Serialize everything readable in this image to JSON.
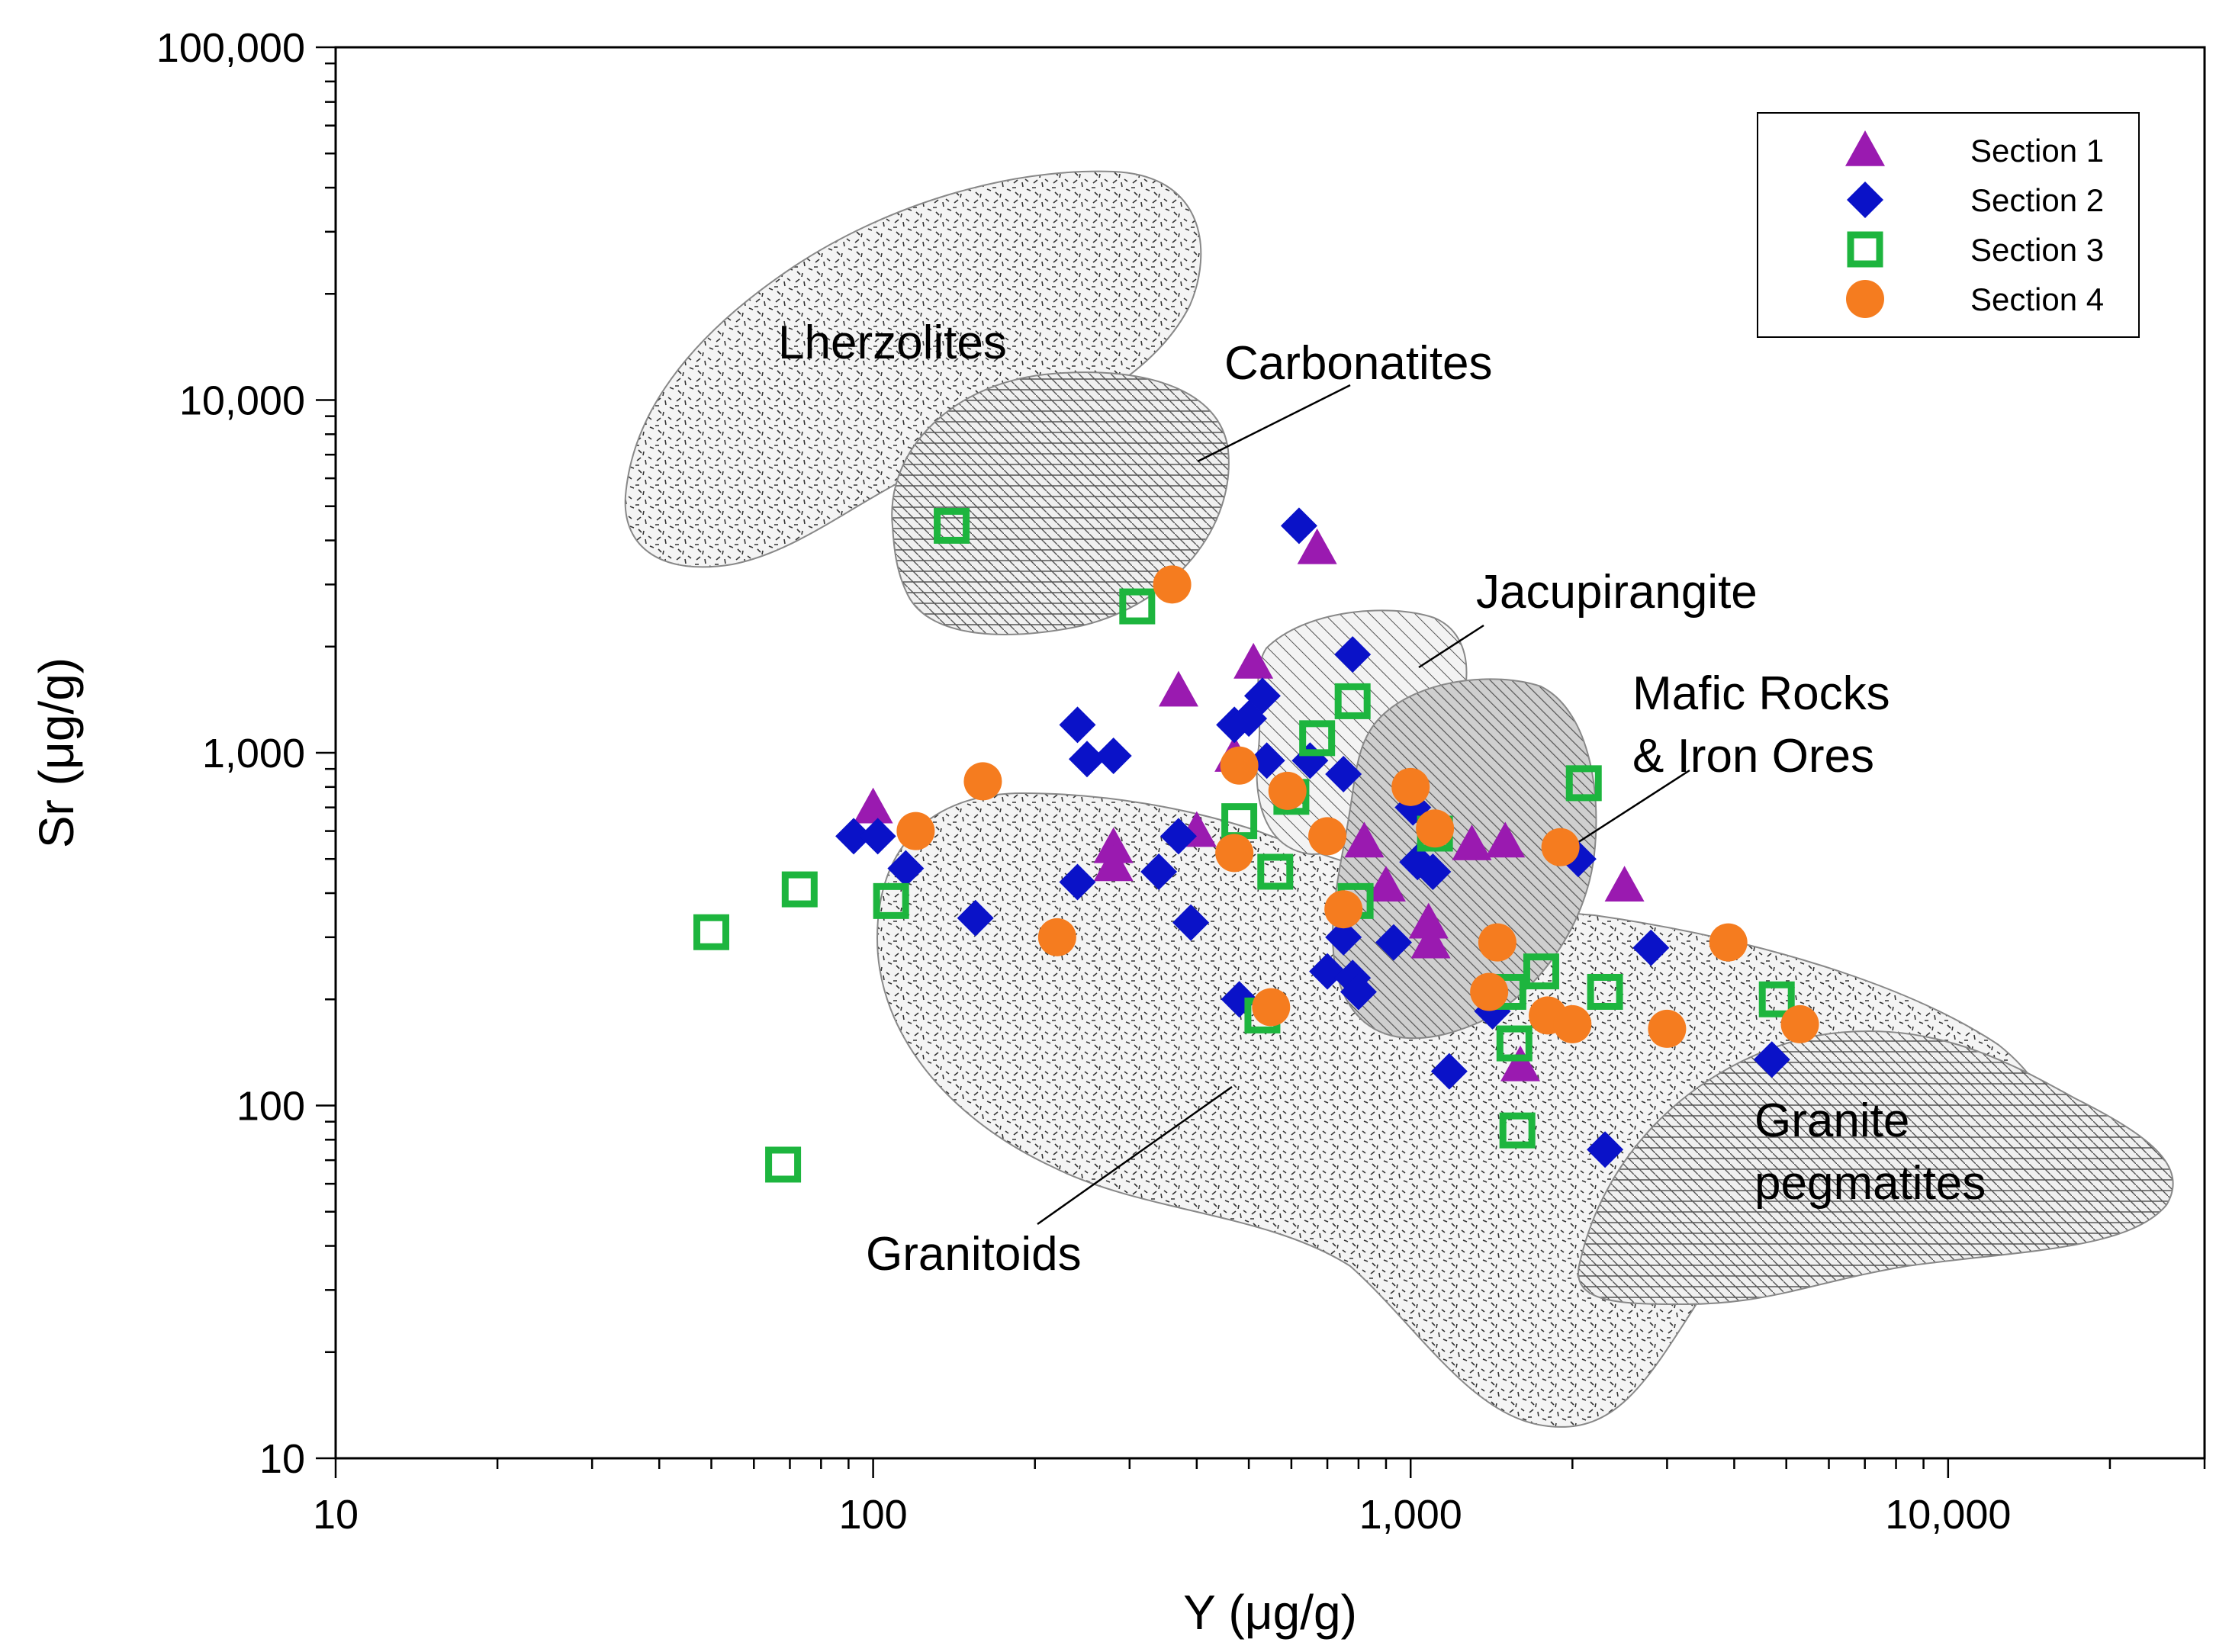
{
  "chart_data": {
    "type": "scatter",
    "xscale": "log",
    "yscale": "log",
    "xlabel": "Y (μg/g)",
    "ylabel": "Sr (μg/g)",
    "xlim": [
      10,
      30000
    ],
    "ylim": [
      10,
      100000
    ],
    "xticks": [
      {
        "value": 10,
        "label": "10"
      },
      {
        "value": 100,
        "label": "100"
      },
      {
        "value": 1000,
        "label": "1,000"
      },
      {
        "value": 10000,
        "label": "10,000"
      }
    ],
    "yticks": [
      {
        "value": 10,
        "label": "10"
      },
      {
        "value": 100,
        "label": "100"
      },
      {
        "value": 1000,
        "label": "1,000"
      },
      {
        "value": 10000,
        "label": "10,000"
      },
      {
        "value": 100000,
        "label": "100,000"
      }
    ],
    "legend_position": "top-right",
    "series": [
      {
        "name": "Section 1",
        "marker": "triangle",
        "color": "#9a1ab0",
        "points": [
          [
            100,
            700
          ],
          [
            280,
            540
          ],
          [
            280,
            480
          ],
          [
            370,
            1500
          ],
          [
            400,
            600
          ],
          [
            470,
            980
          ],
          [
            510,
            1800
          ],
          [
            670,
            3800
          ],
          [
            820,
            560
          ],
          [
            900,
            420
          ],
          [
            1080,
            330
          ],
          [
            1090,
            290
          ],
          [
            1300,
            550
          ],
          [
            1500,
            560
          ],
          [
            1600,
            130
          ],
          [
            2500,
            420
          ]
        ]
      },
      {
        "name": "Section 2",
        "marker": "diamond",
        "color": "#0a12c8",
        "points": [
          [
            92,
            580
          ],
          [
            102,
            580
          ],
          [
            115,
            470
          ],
          [
            155,
            340
          ],
          [
            240,
            1200
          ],
          [
            250,
            960
          ],
          [
            240,
            430
          ],
          [
            280,
            980
          ],
          [
            340,
            460
          ],
          [
            370,
            580
          ],
          [
            390,
            330
          ],
          [
            470,
            1200
          ],
          [
            500,
            1250
          ],
          [
            530,
            1450
          ],
          [
            540,
            950
          ],
          [
            590,
            750
          ],
          [
            620,
            4400
          ],
          [
            650,
            950
          ],
          [
            750,
            870
          ],
          [
            780,
            1900
          ],
          [
            480,
            200
          ],
          [
            700,
            240
          ],
          [
            750,
            300
          ],
          [
            780,
            230
          ],
          [
            800,
            210
          ],
          [
            930,
            290
          ],
          [
            1010,
            700
          ],
          [
            1030,
            490
          ],
          [
            1100,
            460
          ],
          [
            1180,
            125
          ],
          [
            1420,
            185
          ],
          [
            2050,
            500
          ],
          [
            2300,
            75
          ],
          [
            2800,
            280
          ],
          [
            4700,
            135
          ]
        ]
      },
      {
        "name": "Section 3",
        "marker": "square",
        "color": "#1db53e",
        "points": [
          [
            50,
            310
          ],
          [
            68,
            68
          ],
          [
            73,
            410
          ],
          [
            108,
            380
          ],
          [
            140,
            4400
          ],
          [
            310,
            2600
          ],
          [
            480,
            640
          ],
          [
            530,
            180
          ],
          [
            560,
            460
          ],
          [
            600,
            750
          ],
          [
            670,
            1100
          ],
          [
            780,
            1400
          ],
          [
            790,
            380
          ],
          [
            1110,
            590
          ],
          [
            1520,
            210
          ],
          [
            1560,
            150
          ],
          [
            1580,
            85
          ],
          [
            1750,
            240
          ],
          [
            2100,
            820
          ],
          [
            2300,
            210
          ],
          [
            4800,
            200
          ]
        ]
      },
      {
        "name": "Section 4",
        "marker": "circle",
        "color": "#f57c1f",
        "points": [
          [
            120,
            600
          ],
          [
            160,
            830
          ],
          [
            220,
            300
          ],
          [
            360,
            3000
          ],
          [
            470,
            520
          ],
          [
            480,
            920
          ],
          [
            550,
            190
          ],
          [
            590,
            780
          ],
          [
            700,
            580
          ],
          [
            750,
            360
          ],
          [
            1000,
            800
          ],
          [
            1110,
            610
          ],
          [
            1400,
            210
          ],
          [
            1450,
            290
          ],
          [
            1800,
            180
          ],
          [
            1900,
            540
          ],
          [
            2000,
            170
          ],
          [
            3000,
            165
          ],
          [
            3900,
            290
          ],
          [
            5300,
            170
          ]
        ]
      }
    ],
    "regions": [
      {
        "name": "Lherzolites",
        "pattern": "dashes"
      },
      {
        "name": "Carbonatites",
        "pattern": "grid"
      },
      {
        "name": "Jacupirangite",
        "pattern": "hatch"
      },
      {
        "name": "Mafic Rocks & Iron Ores",
        "pattern": "dense-hatch"
      },
      {
        "name": "Granitoids",
        "pattern": "dashes"
      },
      {
        "name": "Granite pegmatites",
        "pattern": "grid"
      }
    ],
    "annotations": {
      "lherzolites": "Lherzolites",
      "carbonatites": "Carbonatites",
      "jacupirangite": "Jacupirangite",
      "mafic_line1": "Mafic Rocks",
      "mafic_line2": "& Iron Ores",
      "granitoids": "Granitoids",
      "granite_line1": "Granite",
      "granite_line2": "pegmatites"
    }
  }
}
